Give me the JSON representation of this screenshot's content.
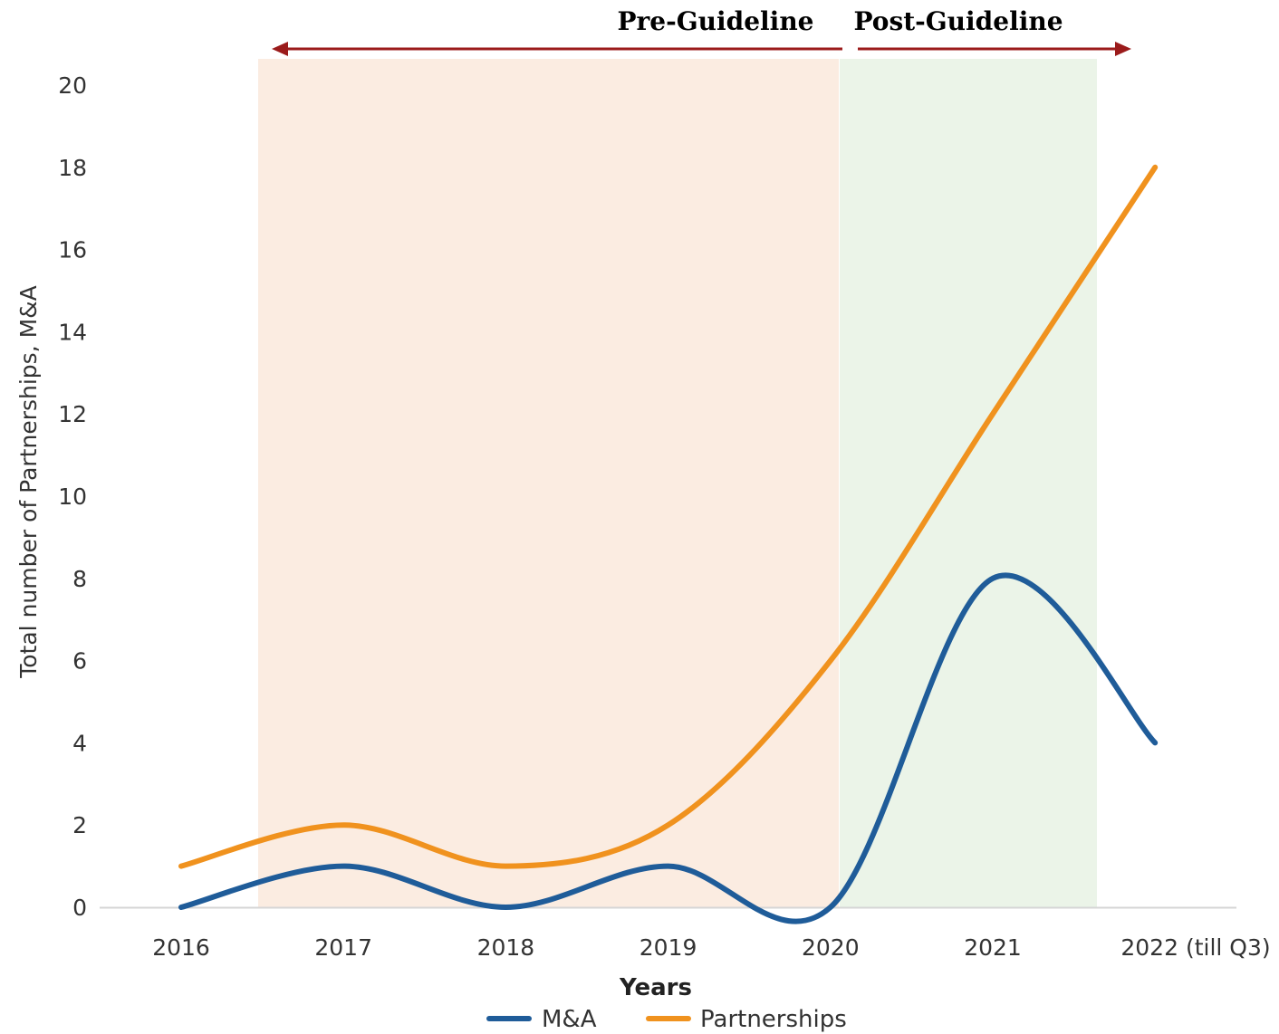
{
  "chart_data": {
    "type": "line",
    "title": "",
    "xlabel": "Years",
    "ylabel": "Total number of Partnerships, M&A",
    "categories": [
      "2016",
      "2017",
      "2018",
      "2019",
      "2020",
      "2021",
      "2022 (till Q3)"
    ],
    "y_ticks": [
      "0",
      "2",
      "4",
      "6",
      "8",
      "10",
      "12",
      "14",
      "16",
      "18",
      "20"
    ],
    "ylim": [
      0,
      20
    ],
    "grid": false,
    "legend_position": "bottom",
    "series": [
      {
        "name": "M&A",
        "values": [
          0,
          1,
          0,
          1,
          0,
          8,
          4
        ],
        "color": "#1f5c99"
      },
      {
        "name": "Partnerships",
        "values": [
          1,
          2,
          1,
          2,
          6,
          12,
          18
        ],
        "color": "#f0921e"
      }
    ],
    "annotations": {
      "pre_label": "Pre-Guideline",
      "post_label": "Post-Guideline",
      "pre_color": "#fbece1",
      "post_color": "#ebf4e8",
      "arrow_color": "#9b1b1b"
    }
  }
}
